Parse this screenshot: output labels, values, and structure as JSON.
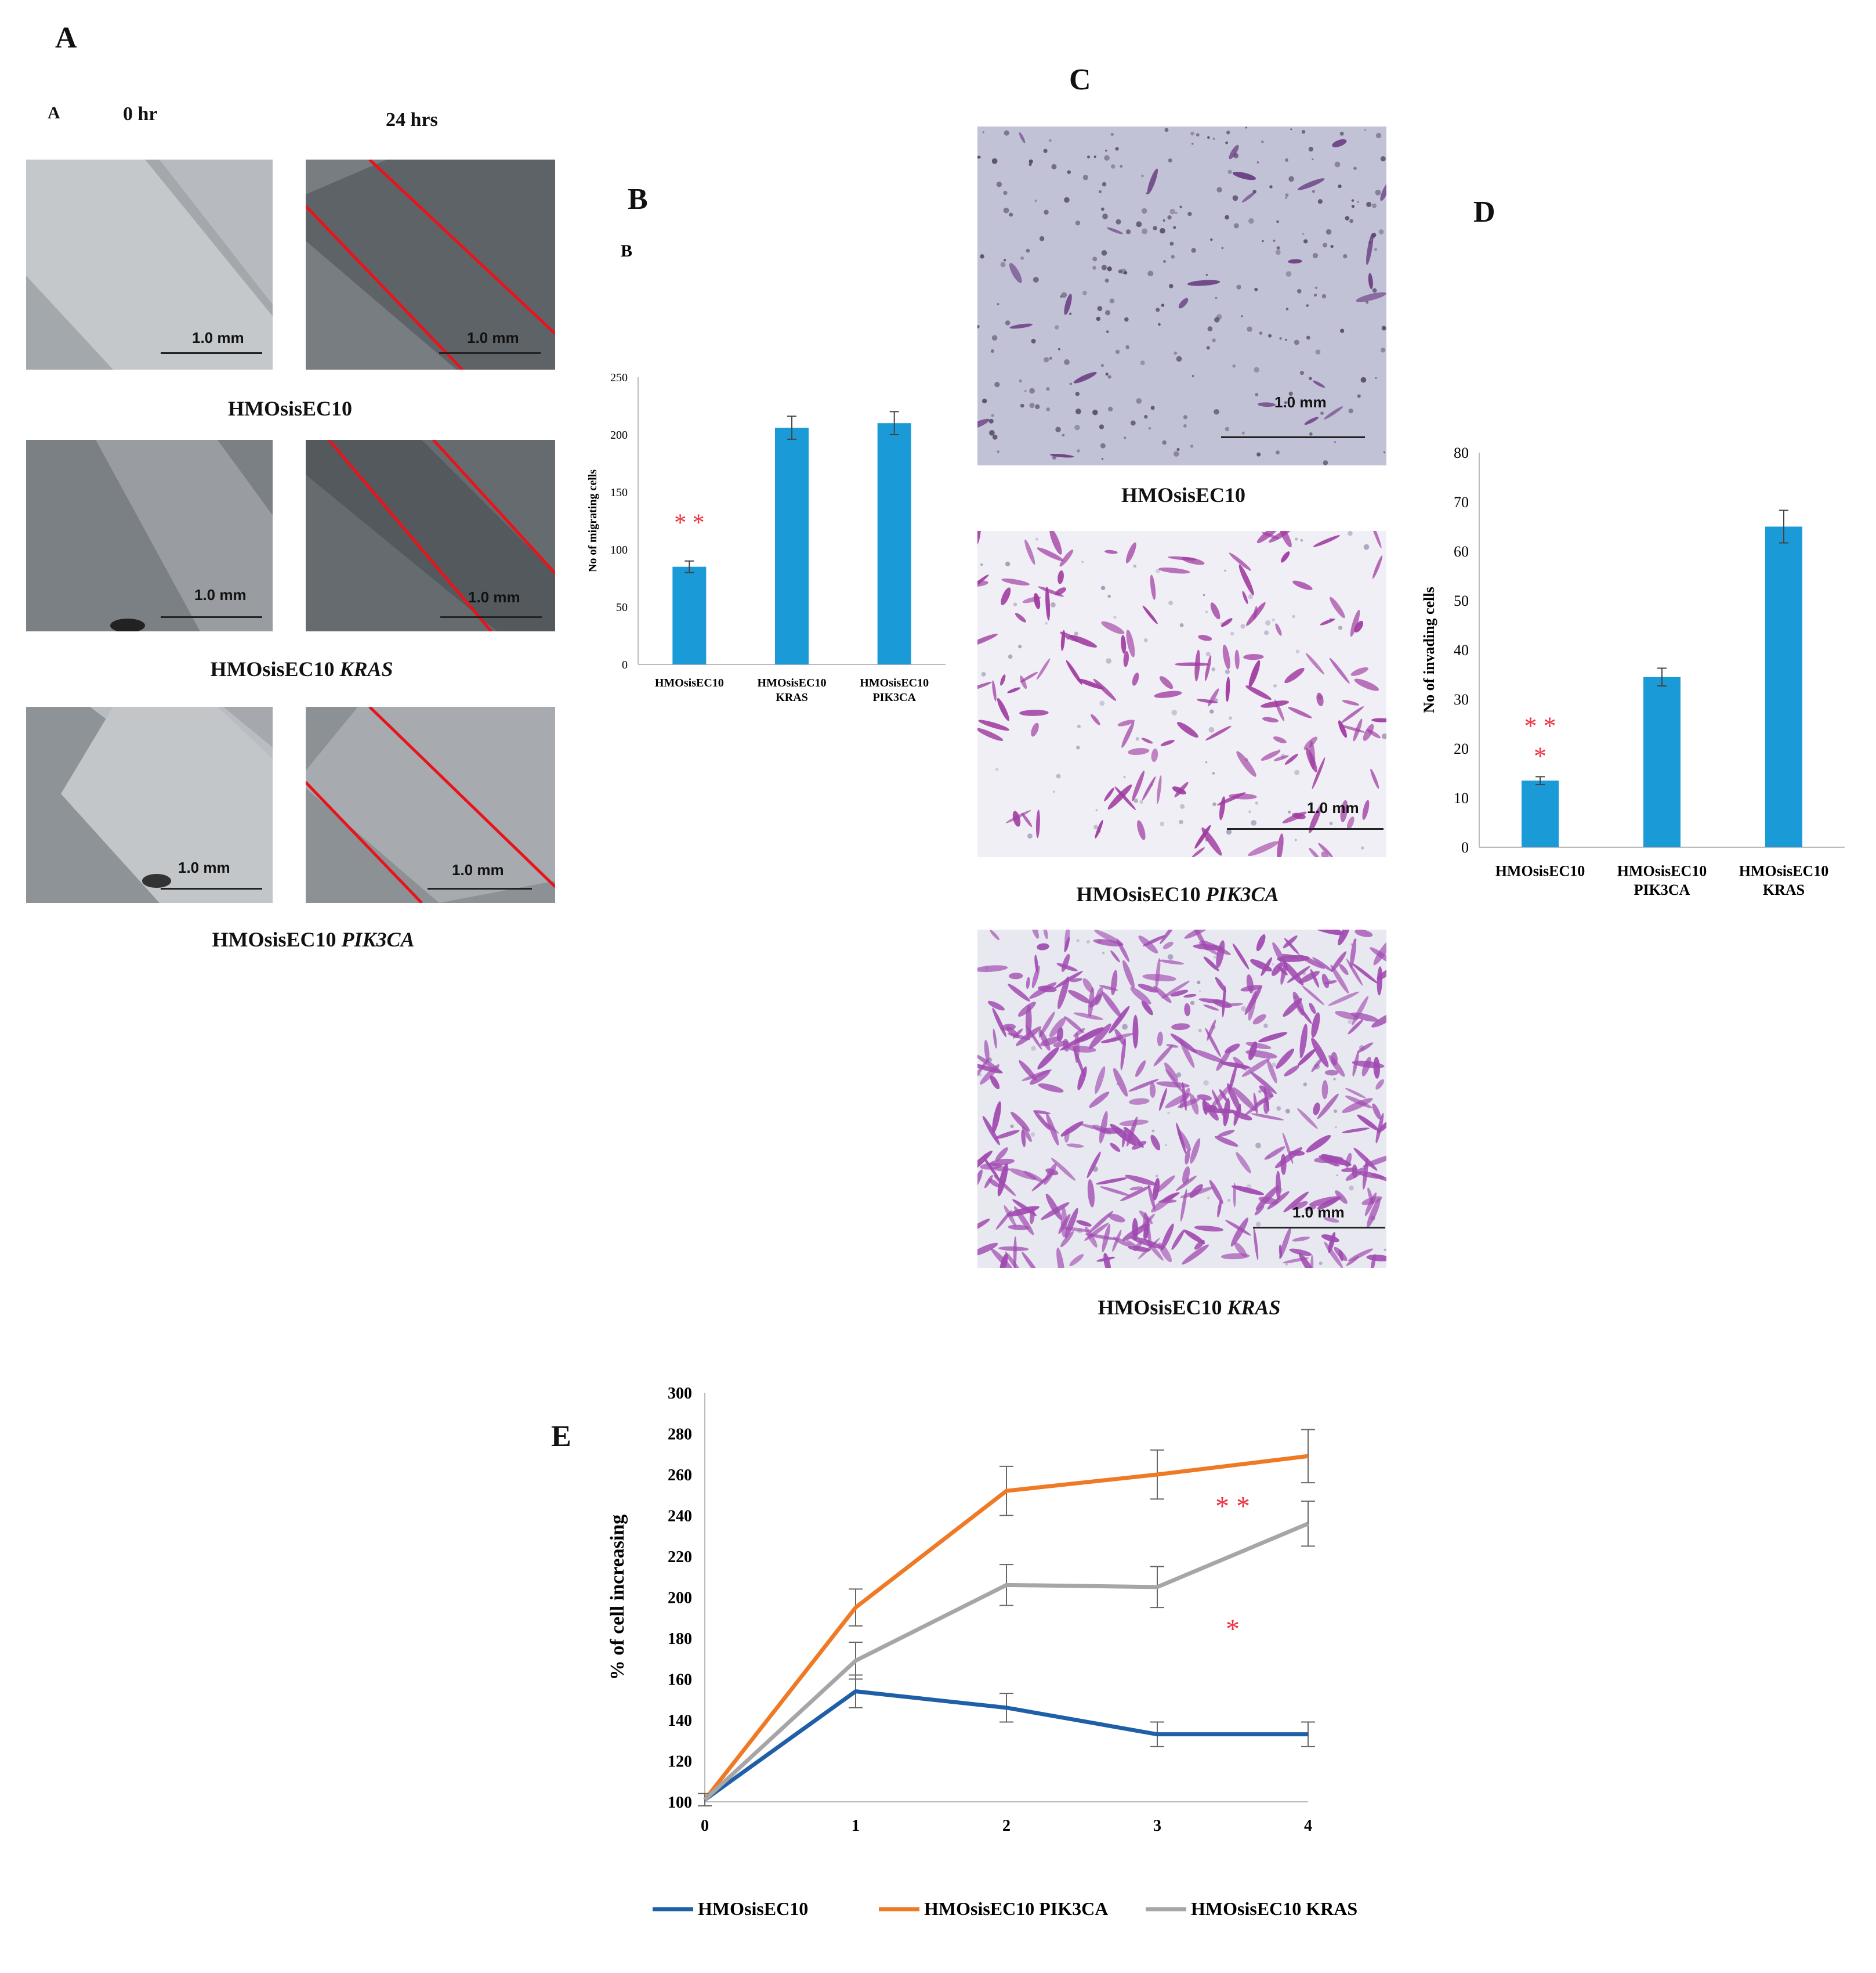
{
  "panel_labels": {
    "A": "A",
    "B": "B",
    "C": "C",
    "D": "D",
    "E": "E"
  },
  "panel_a": {
    "inner_label": "A",
    "time_0": "0 hr",
    "time_24": "24 hrs",
    "scale": "1.0 mm",
    "rows": [
      {
        "name": "HMOsisEC10",
        "gene": ""
      },
      {
        "name": "HMOsisEC10",
        "gene": "KRAS"
      },
      {
        "name": "HMOsisEC10",
        "gene": "PIK3CA"
      }
    ]
  },
  "panel_c": {
    "scale": "1.0 mm",
    "images": [
      {
        "name": "HMOsisEC10",
        "gene": ""
      },
      {
        "name": "HMOsisEC10",
        "gene": "PIK3CA"
      },
      {
        "name": "HMOsisEC10",
        "gene": "KRAS"
      }
    ]
  },
  "colors": {
    "bar": "#1a9ad6",
    "blue": "#1f5fa8",
    "orange": "#ef7a25",
    "gray": "#a6a6a6",
    "star": "#ee3344",
    "red_line": "#e8141c"
  },
  "chart_data": [
    {
      "id": "B",
      "type": "bar",
      "inner_label": "B",
      "categories": [
        [
          "HMOsisEC10"
        ],
        [
          "HMOsisEC10",
          "KRAS"
        ],
        [
          "HMOsisEC10",
          "PIK3CA"
        ]
      ],
      "values": [
        85,
        206,
        210
      ],
      "errors": [
        5,
        10,
        10
      ],
      "ylabel": "No of migrating cells",
      "ylim": [
        0,
        250
      ],
      "yticks": [
        0,
        50,
        100,
        150,
        200,
        250
      ],
      "significance": [
        {
          "category": 0,
          "label": "* *"
        }
      ]
    },
    {
      "id": "D",
      "type": "bar",
      "categories": [
        [
          "HMOsisEC10"
        ],
        [
          "HMOsisEC10",
          "PIK3CA"
        ],
        [
          "HMOsisEC10",
          "KRAS"
        ]
      ],
      "values": [
        13.5,
        34.5,
        65
      ],
      "errors": [
        0.8,
        1.8,
        3.3
      ],
      "ylabel": "No of invading cells",
      "ylim": [
        0,
        80
      ],
      "yticks": [
        0,
        10,
        20,
        30,
        40,
        50,
        60,
        70,
        80
      ],
      "significance": [
        {
          "category": 0,
          "label": "* *"
        },
        {
          "category": 0,
          "label": "*"
        }
      ]
    },
    {
      "id": "E",
      "type": "line",
      "x": [
        0,
        1,
        2,
        3,
        4
      ],
      "series": [
        {
          "name": "HMOsisEC10",
          "values": [
            101,
            154,
            146,
            133,
            133
          ],
          "errors": [
            3,
            8,
            7,
            6,
            6
          ]
        },
        {
          "name": "HMOsisEC10 PIK3CA",
          "values": [
            101,
            195,
            252,
            260,
            269
          ],
          "errors": [
            3,
            9,
            12,
            12,
            13
          ]
        },
        {
          "name": "HMOsisEC10 KRAS",
          "values": [
            101,
            169,
            206,
            205,
            236
          ],
          "errors": [
            3,
            9,
            10,
            10,
            11
          ]
        }
      ],
      "ylabel": "% of cell increasing",
      "ylim": [
        100,
        300
      ],
      "yticks": [
        100,
        120,
        140,
        160,
        180,
        200,
        220,
        240,
        260,
        280,
        300
      ],
      "xticks": [
        0,
        1,
        2,
        3,
        4
      ],
      "significance": [
        {
          "label": "* *"
        },
        {
          "label": "*"
        }
      ]
    }
  ]
}
